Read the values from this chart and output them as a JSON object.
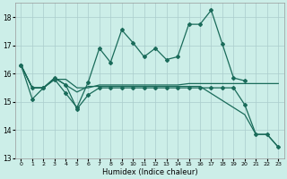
{
  "xlabel": "Humidex (Indice chaleur)",
  "xlim": [
    -0.5,
    23.5
  ],
  "ylim": [
    13,
    18.5
  ],
  "yticks": [
    13,
    14,
    15,
    16,
    17,
    18
  ],
  "xticks": [
    0,
    1,
    2,
    3,
    4,
    5,
    6,
    7,
    8,
    9,
    10,
    11,
    12,
    13,
    14,
    15,
    16,
    17,
    18,
    19,
    20,
    21,
    22,
    23
  ],
  "bg_color": "#cceee8",
  "grid_color": "#aacccc",
  "line_color": "#1a6b5a",
  "series": [
    {
      "y": [
        16.3,
        15.1,
        15.5,
        15.8,
        15.3,
        14.8,
        15.7,
        16.9,
        16.4,
        17.55,
        17.1,
        16.6,
        16.9,
        16.5,
        16.6,
        17.75,
        17.75,
        18.25,
        17.05,
        15.85,
        15.75,
        null,
        null,
        null
      ],
      "marker": "D",
      "ms": 2.0
    },
    {
      "y": [
        16.3,
        15.5,
        15.5,
        15.8,
        15.8,
        15.5,
        15.5,
        15.6,
        15.6,
        15.6,
        15.6,
        15.6,
        15.6,
        15.6,
        15.6,
        15.65,
        15.65,
        15.65,
        15.65,
        15.65,
        15.65,
        15.65,
        15.65,
        15.65
      ],
      "marker": null,
      "ms": 0
    },
    {
      "y": [
        16.3,
        15.5,
        15.5,
        15.85,
        15.6,
        15.35,
        15.55,
        15.55,
        15.55,
        15.55,
        15.55,
        15.55,
        15.55,
        15.55,
        15.55,
        15.55,
        15.55,
        15.3,
        15.05,
        14.8,
        14.55,
        13.85,
        13.85,
        13.4
      ],
      "marker": null,
      "ms": 0
    },
    {
      "y": [
        16.3,
        15.5,
        15.5,
        15.85,
        15.6,
        14.75,
        15.25,
        15.5,
        15.5,
        15.5,
        15.5,
        15.5,
        15.5,
        15.5,
        15.5,
        15.5,
        15.5,
        15.5,
        15.5,
        15.5,
        14.9,
        13.85,
        13.85,
        13.4
      ],
      "marker": "D",
      "ms": 2.0
    }
  ]
}
